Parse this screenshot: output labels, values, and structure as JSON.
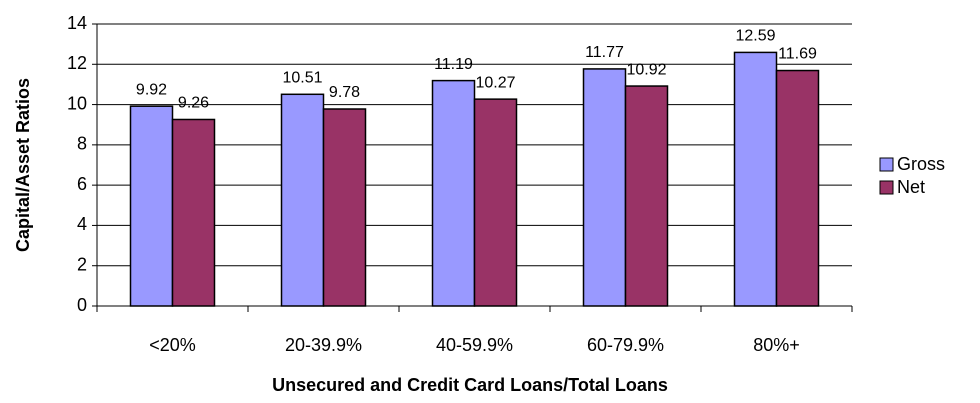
{
  "chart_data": {
    "type": "bar",
    "x_label": "Unsecured and Credit Card Loans/Total Loans",
    "y_label": "Capital/Asset Ratios",
    "categories": [
      "<20%",
      "20-39.9%",
      "40-59.9%",
      "60-79.9%",
      "80%+"
    ],
    "series": [
      {
        "name": "Gross",
        "color": "#9999ff",
        "values": [
          9.92,
          10.51,
          11.19,
          11.77,
          12.59
        ]
      },
      {
        "name": "Net",
        "color": "#993366",
        "values": [
          9.26,
          9.78,
          10.27,
          10.92,
          11.69
        ]
      }
    ],
    "ylim": [
      0,
      14
    ],
    "yticks": [
      0,
      2,
      4,
      6,
      8,
      10,
      12,
      14
    ],
    "grid": true,
    "legend": "right"
  }
}
